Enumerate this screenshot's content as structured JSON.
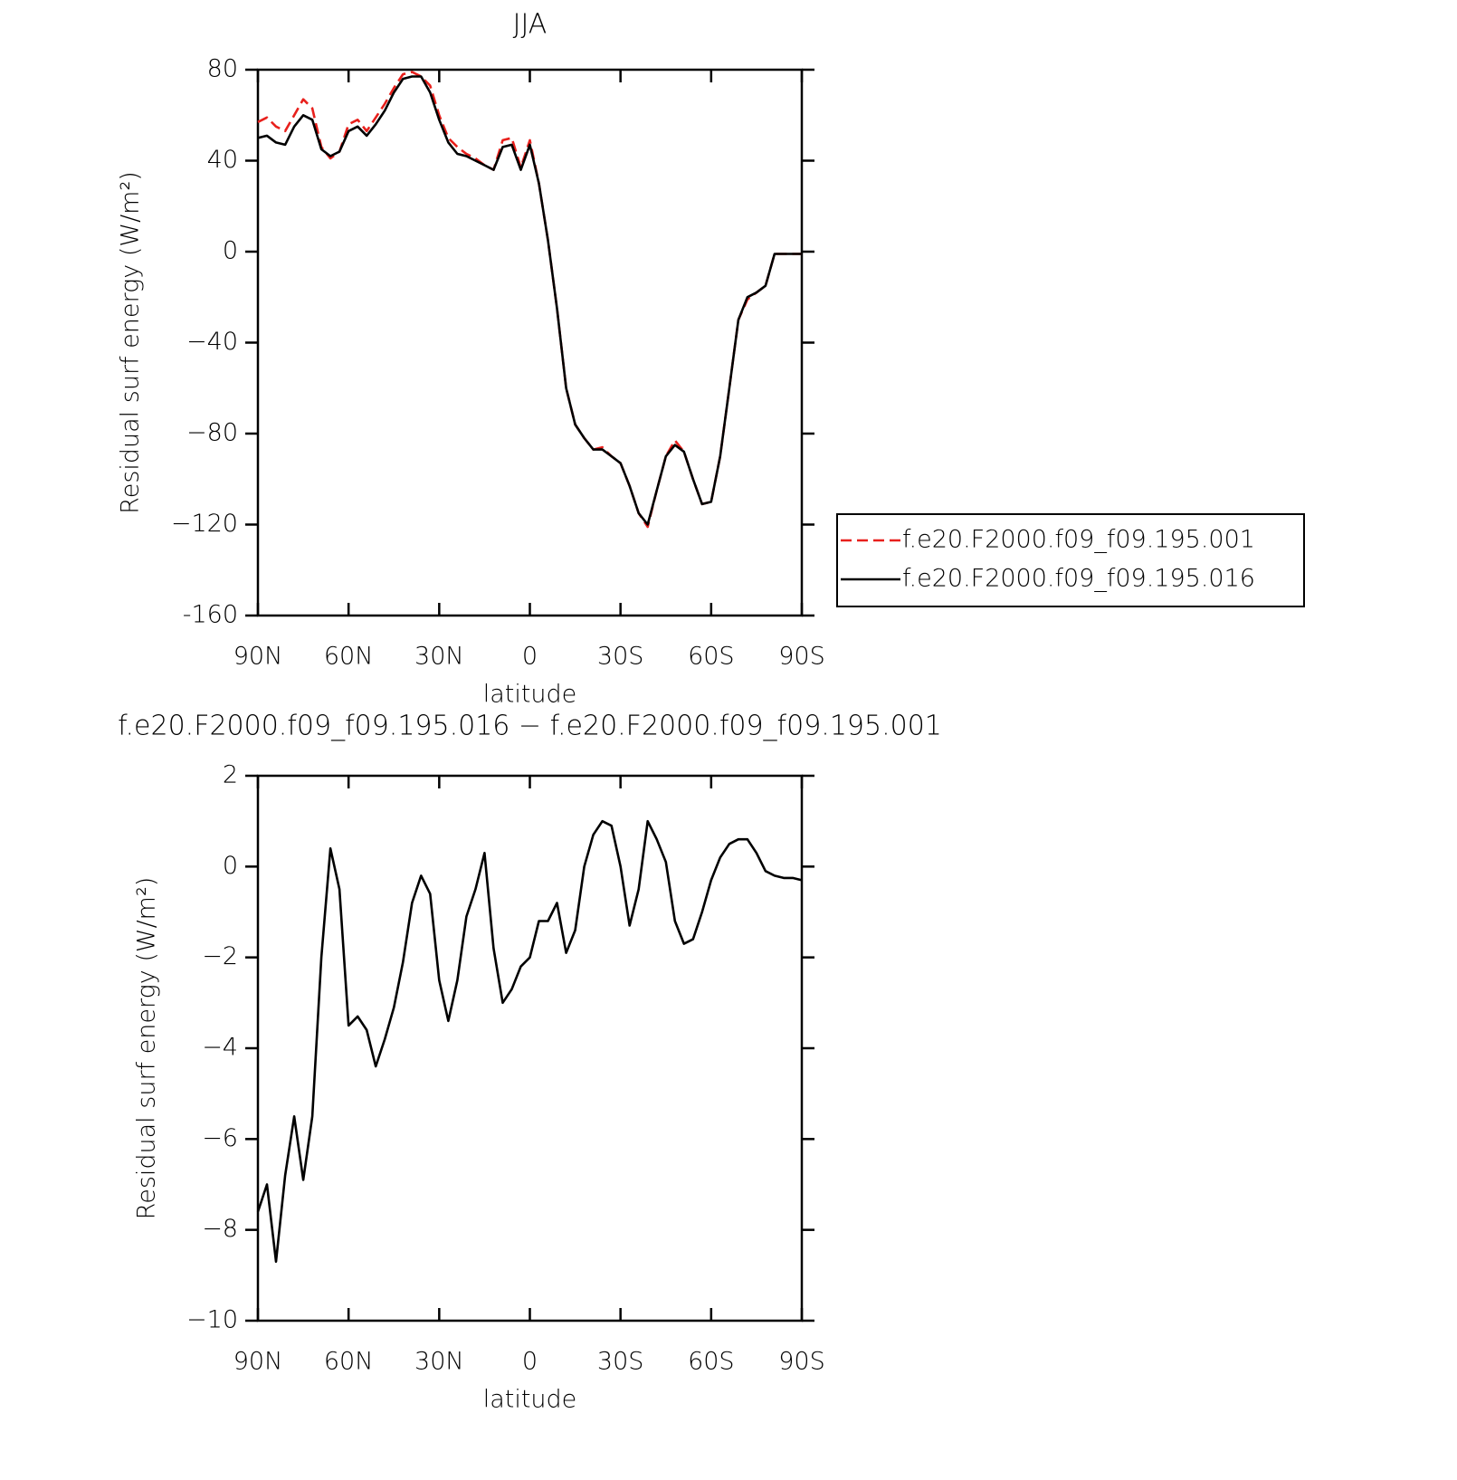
{
  "chart_data": [
    {
      "type": "line",
      "title": "JJA",
      "xlabel": "latitude",
      "ylabel": "Residual surf energy (W/m²)",
      "x": [
        90,
        87,
        84,
        81,
        78,
        75,
        72,
        69,
        66,
        63,
        60,
        57,
        54,
        51,
        48,
        45,
        42,
        39,
        36,
        33,
        30,
        27,
        24,
        21,
        18,
        15,
        12,
        9,
        6,
        3,
        0,
        -3,
        -6,
        -9,
        -12,
        -15,
        -18,
        -21,
        -24,
        -27,
        -30,
        -33,
        -36,
        -39,
        -42,
        -45,
        -48,
        -51,
        -54,
        -57,
        -60,
        -63,
        -66,
        -69,
        -72,
        -75,
        -78,
        -81,
        -84,
        -87,
        -90
      ],
      "series": [
        {
          "name": "f.e20.F2000.f09_f09.195.001",
          "color": "#e8201c",
          "line_style": "dashed",
          "values": [
            57,
            59,
            55,
            53,
            60,
            67,
            63,
            46,
            41,
            44,
            56,
            58,
            53,
            59,
            65,
            72,
            78,
            79,
            77,
            73,
            60,
            50,
            46,
            43,
            41,
            38,
            36,
            49,
            50,
            37,
            49,
            30,
            5,
            -25,
            -60,
            -76,
            -82,
            -87,
            -86,
            -90,
            -93,
            -103,
            -115,
            -121,
            -105,
            -90,
            -83,
            -88,
            -100,
            -111,
            -110,
            -90,
            -60,
            -30,
            -21,
            -18,
            -15,
            -1,
            -1,
            -1,
            -1
          ]
        },
        {
          "name": "f.e20.F2000.f09_f09.195.016",
          "color": "#000000",
          "line_style": "solid",
          "values": [
            50,
            51,
            48,
            47,
            55,
            60,
            58,
            45,
            42,
            44,
            53,
            55,
            51,
            56,
            62,
            70,
            76,
            77,
            77,
            70,
            58,
            48,
            43,
            42,
            40,
            38,
            36,
            46,
            47,
            36,
            47,
            30,
            5,
            -25,
            -60,
            -76,
            -82,
            -87,
            -87,
            -90,
            -93,
            -103,
            -115,
            -120,
            -105,
            -90,
            -85,
            -88,
            -100,
            -111,
            -110,
            -90,
            -60,
            -30,
            -20,
            -18,
            -15,
            -1,
            -1,
            -1,
            -1
          ]
        }
      ],
      "legend": "right",
      "xlim": [
        90,
        -90
      ],
      "xticks": [
        {
          "value": 90,
          "label": "90N"
        },
        {
          "value": 60,
          "label": "60N"
        },
        {
          "value": 30,
          "label": "30N"
        },
        0,
        {
          "value": -30,
          "label": "30S"
        },
        {
          "value": -60,
          "label": "60S"
        },
        {
          "value": -90,
          "label": "90S"
        }
      ],
      "ylim": [
        -160,
        80
      ],
      "yticks": [
        -160,
        {
          "value": -120,
          "label": "−120"
        },
        {
          "value": -80,
          "label": "−80"
        },
        {
          "value": -40,
          "label": "−40"
        },
        0,
        40,
        80
      ]
    },
    {
      "type": "line",
      "title": "f.e20.F2000.f09_f09.195.016 − f.e20.F2000.f09_f09.195.001",
      "xlabel": "latitude",
      "ylabel": "Residual surf energy (W/m²)",
      "x": [
        90,
        87,
        84,
        81,
        78,
        75,
        72,
        69,
        66,
        63,
        60,
        57,
        54,
        51,
        48,
        45,
        42,
        39,
        36,
        33,
        30,
        27,
        24,
        21,
        18,
        15,
        12,
        9,
        6,
        3,
        0,
        -3,
        -6,
        -9,
        -12,
        -15,
        -18,
        -21,
        -24,
        -27,
        -30,
        -33,
        -36,
        -39,
        -42,
        -45,
        -48,
        -51,
        -54,
        -57,
        -60,
        -63,
        -66,
        -69,
        -72,
        -75,
        -78,
        -81,
        -84,
        -87,
        -90
      ],
      "values": [
        -7.6,
        -7.0,
        -8.7,
        -6.8,
        -5.5,
        -6.9,
        -5.5,
        -2.0,
        0.4,
        -0.5,
        -3.5,
        -3.3,
        -3.6,
        -4.4,
        -3.8,
        -3.1,
        -2.1,
        -0.8,
        -0.2,
        -0.6,
        -2.5,
        -3.4,
        -2.5,
        -1.1,
        -0.5,
        0.3,
        -1.8,
        -3.0,
        -2.7,
        -2.2,
        -2.0,
        -1.2,
        -1.2,
        -0.8,
        -1.9,
        -1.4,
        0.0,
        0.7,
        1.0,
        0.9,
        0.0,
        -1.3,
        -0.5,
        1.0,
        0.6,
        0.1,
        -1.2,
        -1.7,
        -1.6,
        -1.0,
        -0.3,
        0.2,
        0.5,
        0.6,
        0.6,
        0.3,
        -0.1,
        -0.2,
        -0.25,
        -0.25,
        -0.3
      ],
      "color": "#000000",
      "xlim": [
        90,
        -90
      ],
      "xticks": [
        {
          "value": 90,
          "label": "90N"
        },
        {
          "value": 60,
          "label": "60N"
        },
        {
          "value": 30,
          "label": "30N"
        },
        0,
        {
          "value": -30,
          "label": "30S"
        },
        {
          "value": -60,
          "label": "60S"
        },
        {
          "value": -90,
          "label": "90S"
        }
      ],
      "ylim": [
        -10,
        2
      ],
      "yticks": [
        {
          "value": -10,
          "label": "−10"
        },
        {
          "value": -8,
          "label": "−8"
        },
        {
          "value": -6,
          "label": "−6"
        },
        {
          "value": -4,
          "label": "−4"
        },
        {
          "value": -2,
          "label": "−2"
        },
        0,
        2
      ]
    }
  ]
}
